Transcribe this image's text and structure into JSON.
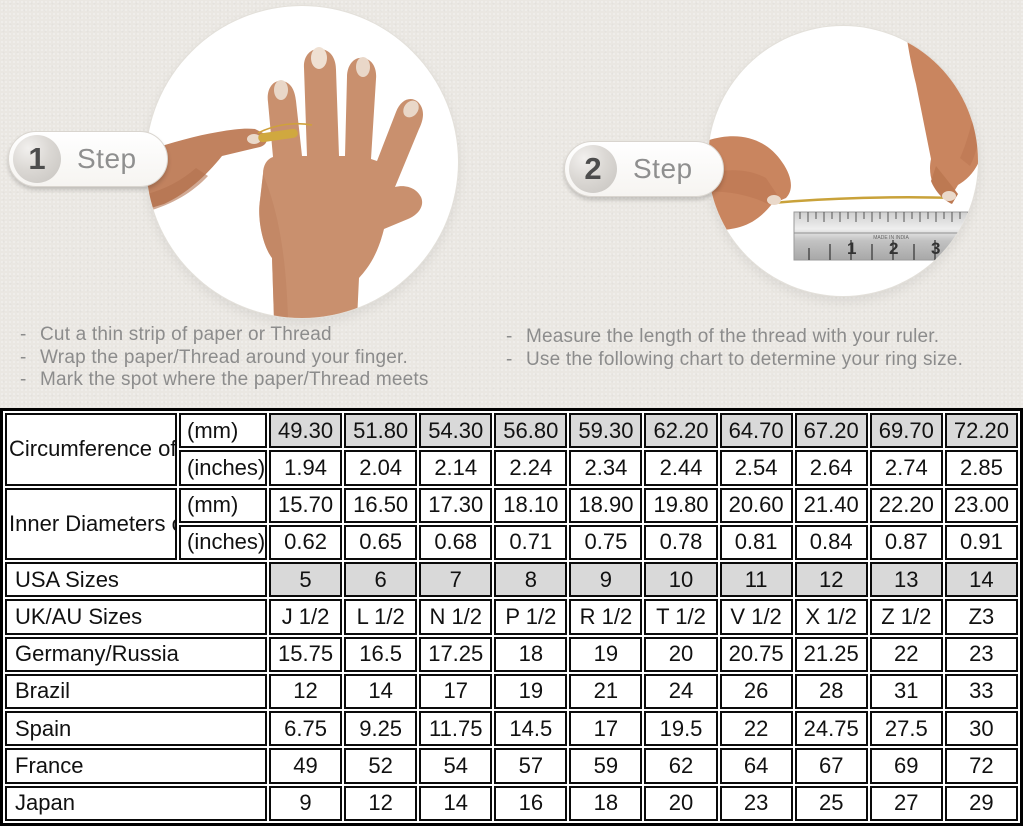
{
  "colors": {
    "background": "#eae7e2",
    "shaded_cell": "#d9d9d9",
    "table_border": "#000000",
    "muted_text": "#8c8c8c",
    "gold_thread": "#c9a23a"
  },
  "bullet": "-",
  "steps": [
    {
      "number": "1",
      "label": "Step",
      "image": "hand-with-thread-photo",
      "instructions": [
        "Cut a thin strip of paper or Thread",
        "Wrap the paper/Thread around your finger.",
        "Mark the spot where the paper/Thread meets"
      ]
    },
    {
      "number": "2",
      "label": "Step",
      "image": "measuring-thread-with-ruler-photo",
      "instructions": [
        "Measure the length of the thread with your ruler.",
        "Use the following chart to determine your ring size."
      ]
    }
  ],
  "ruler": {
    "numbers": [
      "1",
      "2",
      "3"
    ],
    "brand_text": "MADE IN INDIA"
  },
  "table": {
    "row_groups": [
      {
        "label": "Circumference of Your Finger",
        "rows": [
          {
            "unit": "(mm)",
            "shaded": true,
            "values": [
              "49.30",
              "51.80",
              "54.30",
              "56.80",
              "59.30",
              "62.20",
              "64.70",
              "67.20",
              "69.70",
              "72.20"
            ]
          },
          {
            "unit": "(inches)",
            "shaded": false,
            "values": [
              "1.94",
              "2.04",
              "2.14",
              "2.24",
              "2.34",
              "2.44",
              "2.54",
              "2.64",
              "2.74",
              "2.85"
            ]
          }
        ]
      },
      {
        "label": "Inner Diameters of Rings",
        "rows": [
          {
            "unit": "(mm)",
            "shaded": false,
            "values": [
              "15.70",
              "16.50",
              "17.30",
              "18.10",
              "18.90",
              "19.80",
              "20.60",
              "21.40",
              "22.20",
              "23.00"
            ]
          },
          {
            "unit": "(inches)",
            "shaded": false,
            "values": [
              "0.62",
              "0.65",
              "0.68",
              "0.71",
              "0.75",
              "0.78",
              "0.81",
              "0.84",
              "0.87",
              "0.91"
            ]
          }
        ]
      }
    ],
    "size_rows": [
      {
        "label": "USA Sizes",
        "shaded": true,
        "values": [
          "5",
          "6",
          "7",
          "8",
          "9",
          "10",
          "11",
          "12",
          "13",
          "14"
        ]
      },
      {
        "label": "UK/AU Sizes",
        "shaded": false,
        "values": [
          "J 1/2",
          "L 1/2",
          "N 1/2",
          "P 1/2",
          "R 1/2",
          "T 1/2",
          "V 1/2",
          "X 1/2",
          "Z 1/2",
          "Z3"
        ]
      },
      {
        "label": "Germany/Russia",
        "shaded": false,
        "values": [
          "15.75",
          "16.5",
          "17.25",
          "18",
          "19",
          "20",
          "20.75",
          "21.25",
          "22",
          "23"
        ]
      },
      {
        "label": "Brazil",
        "shaded": false,
        "values": [
          "12",
          "14",
          "17",
          "19",
          "21",
          "24",
          "26",
          "28",
          "31",
          "33"
        ]
      },
      {
        "label": "Spain",
        "shaded": false,
        "values": [
          "6.75",
          "9.25",
          "11.75",
          "14.5",
          "17",
          "19.5",
          "22",
          "24.75",
          "27.5",
          "30"
        ]
      },
      {
        "label": "France",
        "shaded": false,
        "values": [
          "49",
          "52",
          "54",
          "57",
          "59",
          "62",
          "64",
          "67",
          "69",
          "72"
        ]
      },
      {
        "label": "Japan",
        "shaded": false,
        "values": [
          "9",
          "12",
          "14",
          "16",
          "18",
          "20",
          "23",
          "25",
          "27",
          "29"
        ]
      }
    ]
  }
}
